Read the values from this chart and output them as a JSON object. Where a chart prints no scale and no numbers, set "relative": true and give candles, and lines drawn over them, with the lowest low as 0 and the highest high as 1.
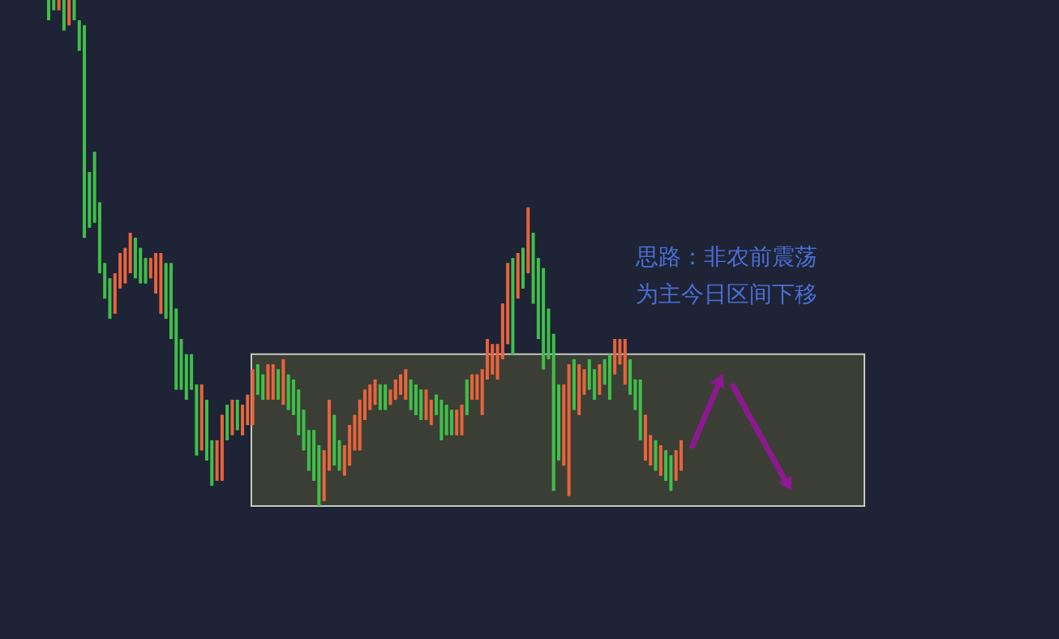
{
  "chart_data": {
    "type": "candlestick",
    "relative": true,
    "categories": [
      null,
      null,
      null,
      null,
      null,
      null,
      null,
      null,
      null,
      null,
      null,
      null,
      null,
      null,
      null,
      null,
      null,
      null,
      null,
      null,
      null,
      null,
      null,
      null,
      null,
      null,
      null,
      null,
      null,
      null,
      null,
      null,
      null,
      null,
      null,
      null,
      null,
      null,
      null,
      null,
      null,
      null,
      null,
      null,
      null,
      null,
      null,
      null,
      null,
      null,
      null,
      null,
      null,
      null,
      null,
      null,
      null,
      null,
      null,
      null,
      null,
      null,
      null,
      null,
      null,
      null,
      null,
      null,
      null,
      null,
      null,
      null,
      null,
      null,
      null,
      null,
      null,
      null,
      null,
      null,
      null,
      null,
      null,
      null,
      null,
      null,
      null,
      null,
      null,
      null,
      null,
      null,
      null,
      null,
      null,
      null,
      null,
      null,
      null,
      null,
      null,
      null,
      null,
      null,
      null,
      null,
      null,
      null,
      null,
      null,
      null,
      null,
      null,
      null,
      null,
      null,
      null,
      null,
      null,
      null,
      null,
      null,
      null,
      null,
      null
    ],
    "ohlc": [
      [
        1.0,
        1.0,
        0.96,
        0.96
      ],
      [
        1.0,
        1.0,
        0.98,
        0.98
      ],
      [
        0.98,
        1.0,
        0.98,
        1.0
      ],
      [
        1.0,
        1.0,
        0.94,
        0.94
      ],
      [
        0.95,
        1.0,
        0.95,
        1.0
      ],
      [
        1.0,
        1.0,
        0.96,
        0.96
      ],
      [
        0.96,
        0.96,
        0.9,
        0.9
      ],
      [
        0.95,
        0.95,
        0.53,
        0.53
      ],
      [
        0.66,
        0.66,
        0.55,
        0.55
      ],
      [
        0.7,
        0.7,
        0.56,
        0.56
      ],
      [
        0.6,
        0.6,
        0.46,
        0.46
      ],
      [
        0.48,
        0.48,
        0.41,
        0.41
      ],
      [
        0.45,
        0.45,
        0.37,
        0.37
      ],
      [
        0.38,
        0.46,
        0.38,
        0.46
      ],
      [
        0.43,
        0.5,
        0.43,
        0.5
      ],
      [
        0.44,
        0.51,
        0.44,
        0.51
      ],
      [
        0.46,
        0.54,
        0.46,
        0.54
      ],
      [
        0.53,
        0.53,
        0.45,
        0.45
      ],
      [
        0.51,
        0.51,
        0.44,
        0.44
      ],
      [
        0.49,
        0.49,
        0.44,
        0.44
      ],
      [
        0.45,
        0.49,
        0.45,
        0.49
      ],
      [
        0.42,
        0.5,
        0.42,
        0.5
      ],
      [
        0.38,
        0.5,
        0.38,
        0.5
      ],
      [
        0.48,
        0.48,
        0.37,
        0.37
      ],
      [
        0.48,
        0.48,
        0.33,
        0.33
      ],
      [
        0.39,
        0.39,
        0.23,
        0.23
      ],
      [
        0.33,
        0.33,
        0.23,
        0.23
      ],
      [
        0.3,
        0.3,
        0.21,
        0.21
      ],
      [
        0.3,
        0.3,
        0.23,
        0.23
      ],
      [
        0.24,
        0.24,
        0.1,
        0.1
      ],
      [
        0.11,
        0.24,
        0.11,
        0.24
      ],
      [
        0.21,
        0.21,
        0.09,
        0.09
      ],
      [
        0.13,
        0.13,
        0.04,
        0.04
      ],
      [
        0.05,
        0.13,
        0.05,
        0.13
      ],
      [
        0.05,
        0.18,
        0.05,
        0.18
      ],
      [
        0.2,
        0.2,
        0.13,
        0.13
      ],
      [
        0.14,
        0.21,
        0.14,
        0.21
      ],
      [
        0.21,
        0.21,
        0.15,
        0.15
      ],
      [
        0.14,
        0.2,
        0.14,
        0.2
      ],
      [
        0.16,
        0.22,
        0.16,
        0.22
      ],
      [
        0.16,
        0.27,
        0.16,
        0.27
      ],
      [
        0.28,
        0.28,
        0.22,
        0.22
      ],
      [
        0.26,
        0.26,
        0.21,
        0.21
      ],
      [
        0.21,
        0.28,
        0.21,
        0.28
      ],
      [
        0.21,
        0.28,
        0.21,
        0.28
      ],
      [
        0.27,
        0.27,
        0.21,
        0.21
      ],
      [
        0.2,
        0.29,
        0.2,
        0.29
      ],
      [
        0.26,
        0.26,
        0.19,
        0.19
      ],
      [
        0.25,
        0.25,
        0.18,
        0.18
      ],
      [
        0.23,
        0.23,
        0.14,
        0.14
      ],
      [
        0.19,
        0.19,
        0.11,
        0.11
      ],
      [
        0.15,
        0.15,
        0.07,
        0.07
      ],
      [
        0.15,
        0.15,
        0.05,
        0.05
      ],
      [
        0.12,
        0.12,
        0.0,
        0.0
      ],
      [
        0.01,
        0.11,
        0.01,
        0.11
      ],
      [
        0.07,
        0.21,
        0.07,
        0.21
      ],
      [
        0.18,
        0.18,
        0.08,
        0.08
      ],
      [
        0.13,
        0.13,
        0.07,
        0.07
      ],
      [
        0.06,
        0.12,
        0.06,
        0.12
      ],
      [
        0.08,
        0.16,
        0.08,
        0.16
      ],
      [
        0.11,
        0.18,
        0.11,
        0.18
      ],
      [
        0.11,
        0.21,
        0.11,
        0.21
      ],
      [
        0.17,
        0.23,
        0.17,
        0.23
      ],
      [
        0.19,
        0.24,
        0.19,
        0.24
      ],
      [
        0.2,
        0.25,
        0.2,
        0.25
      ],
      [
        0.24,
        0.24,
        0.19,
        0.19
      ],
      [
        0.24,
        0.24,
        0.19,
        0.19
      ],
      [
        0.2,
        0.23,
        0.2,
        0.23
      ],
      [
        0.21,
        0.25,
        0.21,
        0.25
      ],
      [
        0.22,
        0.26,
        0.22,
        0.26
      ],
      [
        0.21,
        0.27,
        0.21,
        0.27
      ],
      [
        0.25,
        0.25,
        0.19,
        0.19
      ],
      [
        0.24,
        0.24,
        0.18,
        0.18
      ],
      [
        0.23,
        0.23,
        0.17,
        0.17
      ],
      [
        0.17,
        0.23,
        0.17,
        0.23
      ],
      [
        0.16,
        0.21,
        0.16,
        0.21
      ],
      [
        0.22,
        0.22,
        0.18,
        0.18
      ],
      [
        0.21,
        0.21,
        0.13,
        0.13
      ],
      [
        0.2,
        0.2,
        0.14,
        0.14
      ],
      [
        0.19,
        0.19,
        0.14,
        0.14
      ],
      [
        0.14,
        0.19,
        0.14,
        0.19
      ],
      [
        0.14,
        0.2,
        0.14,
        0.2
      ],
      [
        0.25,
        0.25,
        0.18,
        0.18
      ],
      [
        0.21,
        0.26,
        0.21,
        0.26
      ],
      [
        0.21,
        0.26,
        0.21,
        0.26
      ],
      [
        0.18,
        0.27,
        0.18,
        0.27
      ],
      [
        0.25,
        0.33,
        0.25,
        0.33
      ],
      [
        0.26,
        0.32,
        0.26,
        0.32
      ],
      [
        0.25,
        0.32,
        0.25,
        0.32
      ],
      [
        0.29,
        0.4,
        0.29,
        0.4
      ],
      [
        0.32,
        0.48,
        0.32,
        0.48
      ],
      [
        0.49,
        0.49,
        0.3,
        0.3
      ],
      [
        0.41,
        0.5,
        0.41,
        0.5
      ],
      [
        0.51,
        0.51,
        0.43,
        0.43
      ],
      [
        0.46,
        0.59,
        0.46,
        0.59
      ],
      [
        0.54,
        0.54,
        0.4,
        0.4
      ],
      [
        0.49,
        0.49,
        0.33,
        0.33
      ],
      [
        0.47,
        0.47,
        0.27,
        0.27
      ],
      [
        0.39,
        0.39,
        0.29,
        0.29
      ],
      [
        0.34,
        0.34,
        0.03,
        0.03
      ],
      [
        0.24,
        0.24,
        0.09,
        0.09
      ],
      [
        0.08,
        0.24,
        0.08,
        0.24
      ],
      [
        0.02,
        0.28,
        0.02,
        0.28
      ],
      [
        0.29,
        0.29,
        0.19,
        0.19
      ],
      [
        0.18,
        0.28,
        0.18,
        0.28
      ],
      [
        0.22,
        0.27,
        0.22,
        0.27
      ],
      [
        0.29,
        0.29,
        0.23,
        0.23
      ],
      [
        0.27,
        0.27,
        0.21,
        0.21
      ],
      [
        0.22,
        0.28,
        0.22,
        0.28
      ],
      [
        0.29,
        0.29,
        0.24,
        0.24
      ],
      [
        0.3,
        0.3,
        0.21,
        0.21
      ],
      [
        0.26,
        0.33,
        0.26,
        0.33
      ],
      [
        0.28,
        0.33,
        0.28,
        0.33
      ],
      [
        0.24,
        0.33,
        0.24,
        0.33
      ],
      [
        0.29,
        0.29,
        0.22,
        0.22
      ],
      [
        0.25,
        0.25,
        0.19,
        0.19
      ],
      [
        0.25,
        0.25,
        0.13,
        0.13
      ],
      [
        0.09,
        0.18,
        0.09,
        0.18
      ],
      [
        0.08,
        0.14,
        0.08,
        0.14
      ],
      [
        0.13,
        0.13,
        0.07,
        0.07
      ],
      [
        0.06,
        0.12,
        0.06,
        0.12
      ],
      [
        0.11,
        0.11,
        0.05,
        0.05
      ],
      [
        0.1,
        0.1,
        0.03,
        0.03
      ],
      [
        0.05,
        0.11,
        0.05,
        0.11
      ],
      [
        0.07,
        0.13,
        0.07,
        0.13
      ]
    ],
    "colors": [
      "#3fbf4a",
      "#3fbf4a",
      "#e8643c",
      "#3fbf4a",
      "#e8643c",
      "#3fbf4a",
      "#3fbf4a",
      "#3fbf4a",
      "#3fbf4a",
      "#3fbf4a",
      "#3fbf4a",
      "#3fbf4a",
      "#3fbf4a",
      "#e8643c",
      "#e8643c",
      "#e8643c",
      "#e8643c",
      "#3fbf4a",
      "#3fbf4a",
      "#3fbf4a",
      "#e8643c",
      "#e8643c",
      "#e8643c",
      "#3fbf4a",
      "#3fbf4a",
      "#3fbf4a",
      "#3fbf4a",
      "#3fbf4a",
      "#3fbf4a",
      "#3fbf4a",
      "#e8643c",
      "#3fbf4a",
      "#3fbf4a",
      "#e8643c",
      "#e8643c",
      "#3fbf4a",
      "#e8643c",
      "#3fbf4a",
      "#e8643c",
      "#e8643c",
      "#e8643c",
      "#3fbf4a",
      "#3fbf4a",
      "#e8643c",
      "#e8643c",
      "#3fbf4a",
      "#e8643c",
      "#3fbf4a",
      "#3fbf4a",
      "#3fbf4a",
      "#3fbf4a",
      "#3fbf4a",
      "#3fbf4a",
      "#3fbf4a",
      "#e8643c",
      "#e8643c",
      "#3fbf4a",
      "#3fbf4a",
      "#e8643c",
      "#e8643c",
      "#e8643c",
      "#e8643c",
      "#e8643c",
      "#e8643c",
      "#e8643c",
      "#3fbf4a",
      "#3fbf4a",
      "#e8643c",
      "#e8643c",
      "#e8643c",
      "#e8643c",
      "#3fbf4a",
      "#3fbf4a",
      "#3fbf4a",
      "#e8643c",
      "#e8643c",
      "#3fbf4a",
      "#3fbf4a",
      "#3fbf4a",
      "#3fbf4a",
      "#e8643c",
      "#e8643c",
      "#3fbf4a",
      "#e8643c",
      "#e8643c",
      "#e8643c",
      "#e8643c",
      "#e8643c",
      "#e8643c",
      "#e8643c",
      "#e8643c",
      "#3fbf4a",
      "#e8643c",
      "#3fbf4a",
      "#e8643c",
      "#3fbf4a",
      "#3fbf4a",
      "#3fbf4a",
      "#3fbf4a",
      "#3fbf4a",
      "#3fbf4a",
      "#e8643c",
      "#e8643c",
      "#3fbf4a",
      "#e8643c",
      "#e8643c",
      "#3fbf4a",
      "#3fbf4a",
      "#e8643c",
      "#3fbf4a",
      "#3fbf4a",
      "#e8643c",
      "#e8643c",
      "#e8643c",
      "#3fbf4a",
      "#3fbf4a",
      "#3fbf4a",
      "#e8643c",
      "#e8643c",
      "#3fbf4a",
      "#e8643c",
      "#3fbf4a",
      "#3fbf4a",
      "#e8643c",
      "#e8643c"
    ],
    "bands": [
      {
        "axis": "y",
        "from": 0,
        "to": 0.3,
        "color": "#3b3e35"
      }
    ],
    "annotations": [
      "思路：非农前震荡为主今日区间下移"
    ]
  }
}
